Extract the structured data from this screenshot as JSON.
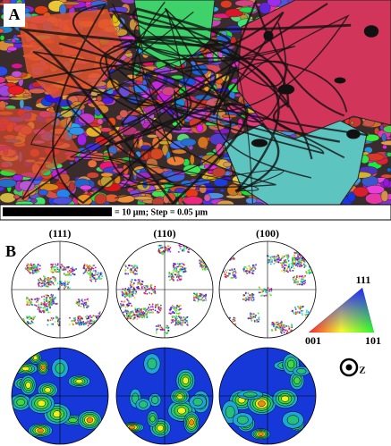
{
  "panel_a": {
    "label": "A",
    "scale_bar": "= 10 μm; Step = 0.05 μm"
  },
  "panel_b": {
    "label": "B",
    "pole_figures": [
      "(111)",
      "(110)",
      "(100)"
    ],
    "ipf_key": {
      "top": "111",
      "left": "001",
      "right": "101"
    },
    "axis": "Z"
  }
}
